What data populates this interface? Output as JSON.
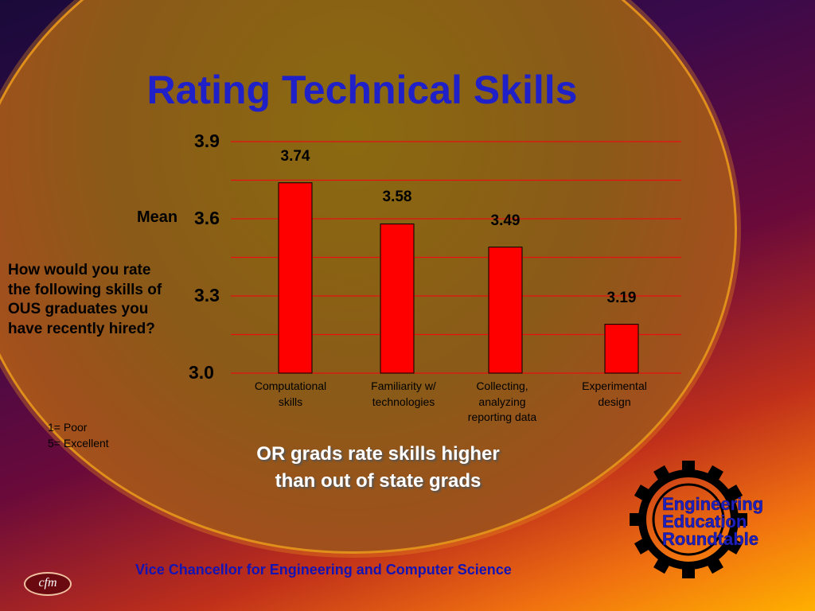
{
  "slide": {
    "title": "Rating Technical Skills",
    "question": "How would you rate the following skills of OUS graduates you have recently hired?",
    "scale": [
      "1= Poor",
      "5= Excellent"
    ],
    "note_line1": "OR grads rate skills higher",
    "note_line2": "than out of state grads",
    "footer": "Vice Chancellor for Engineering and Computer Science",
    "cfm_logo": "cfm",
    "logo_lines": [
      "Engineering",
      "Education",
      "Roundtable"
    ]
  },
  "colors": {
    "bar": "#ff0000",
    "grid": "#e81010",
    "title": "#2020c8"
  },
  "chart_data": {
    "type": "bar",
    "title": "Rating Technical Skills",
    "ylabel": "Mean",
    "xlabel": "",
    "ylim": [
      3.0,
      3.9
    ],
    "yticks": [
      "3.0",
      "3.3",
      "3.6",
      "3.9"
    ],
    "categories": [
      [
        "Computational",
        "skills"
      ],
      [
        "Familiarity w/",
        "technologies"
      ],
      [
        "Collecting,",
        "analyzing",
        "reporting data"
      ],
      [
        "Experimental",
        "design"
      ]
    ],
    "values": [
      3.74,
      3.58,
      3.49,
      3.19
    ],
    "value_labels": [
      "3.74",
      "3.58",
      "3.49",
      "3.19"
    ],
    "grid": true
  }
}
